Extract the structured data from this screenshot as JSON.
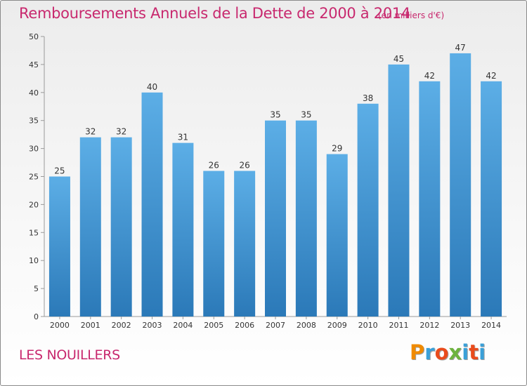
{
  "header": {
    "title": "Remboursements Annuels de la Dette de 2000 à 2014",
    "subtitle": "(en milliers d'€)"
  },
  "footer": {
    "place": "LES NOUILLERS",
    "logo": "Proxiti"
  },
  "colors": {
    "accent": "#c8286e",
    "bar_top": "#5caee6",
    "bar_bottom": "#2b79b8",
    "logo_letters": [
      "#f08a00",
      "#3aa0d8",
      "#e94b1c",
      "#6db33f",
      "#3aa0d8",
      "#e94b1c",
      "#3aa0d8"
    ]
  },
  "chart_data": {
    "type": "bar",
    "title": "Remboursements Annuels de la Dette de 2000 à 2014",
    "subtitle": "(en milliers d'€)",
    "xlabel": "",
    "ylabel": "",
    "categories": [
      "2000",
      "2001",
      "2002",
      "2003",
      "2004",
      "2005",
      "2006",
      "2007",
      "2008",
      "2009",
      "2010",
      "2011",
      "2012",
      "2013",
      "2014"
    ],
    "values": [
      25,
      32,
      32,
      40,
      31,
      26,
      26,
      35,
      35,
      29,
      38,
      45,
      42,
      47,
      42
    ],
    "ylim": [
      0,
      50
    ],
    "yticks": [
      0,
      5,
      10,
      15,
      20,
      25,
      30,
      35,
      40,
      45,
      50
    ],
    "grid": false,
    "data_labels": true
  }
}
